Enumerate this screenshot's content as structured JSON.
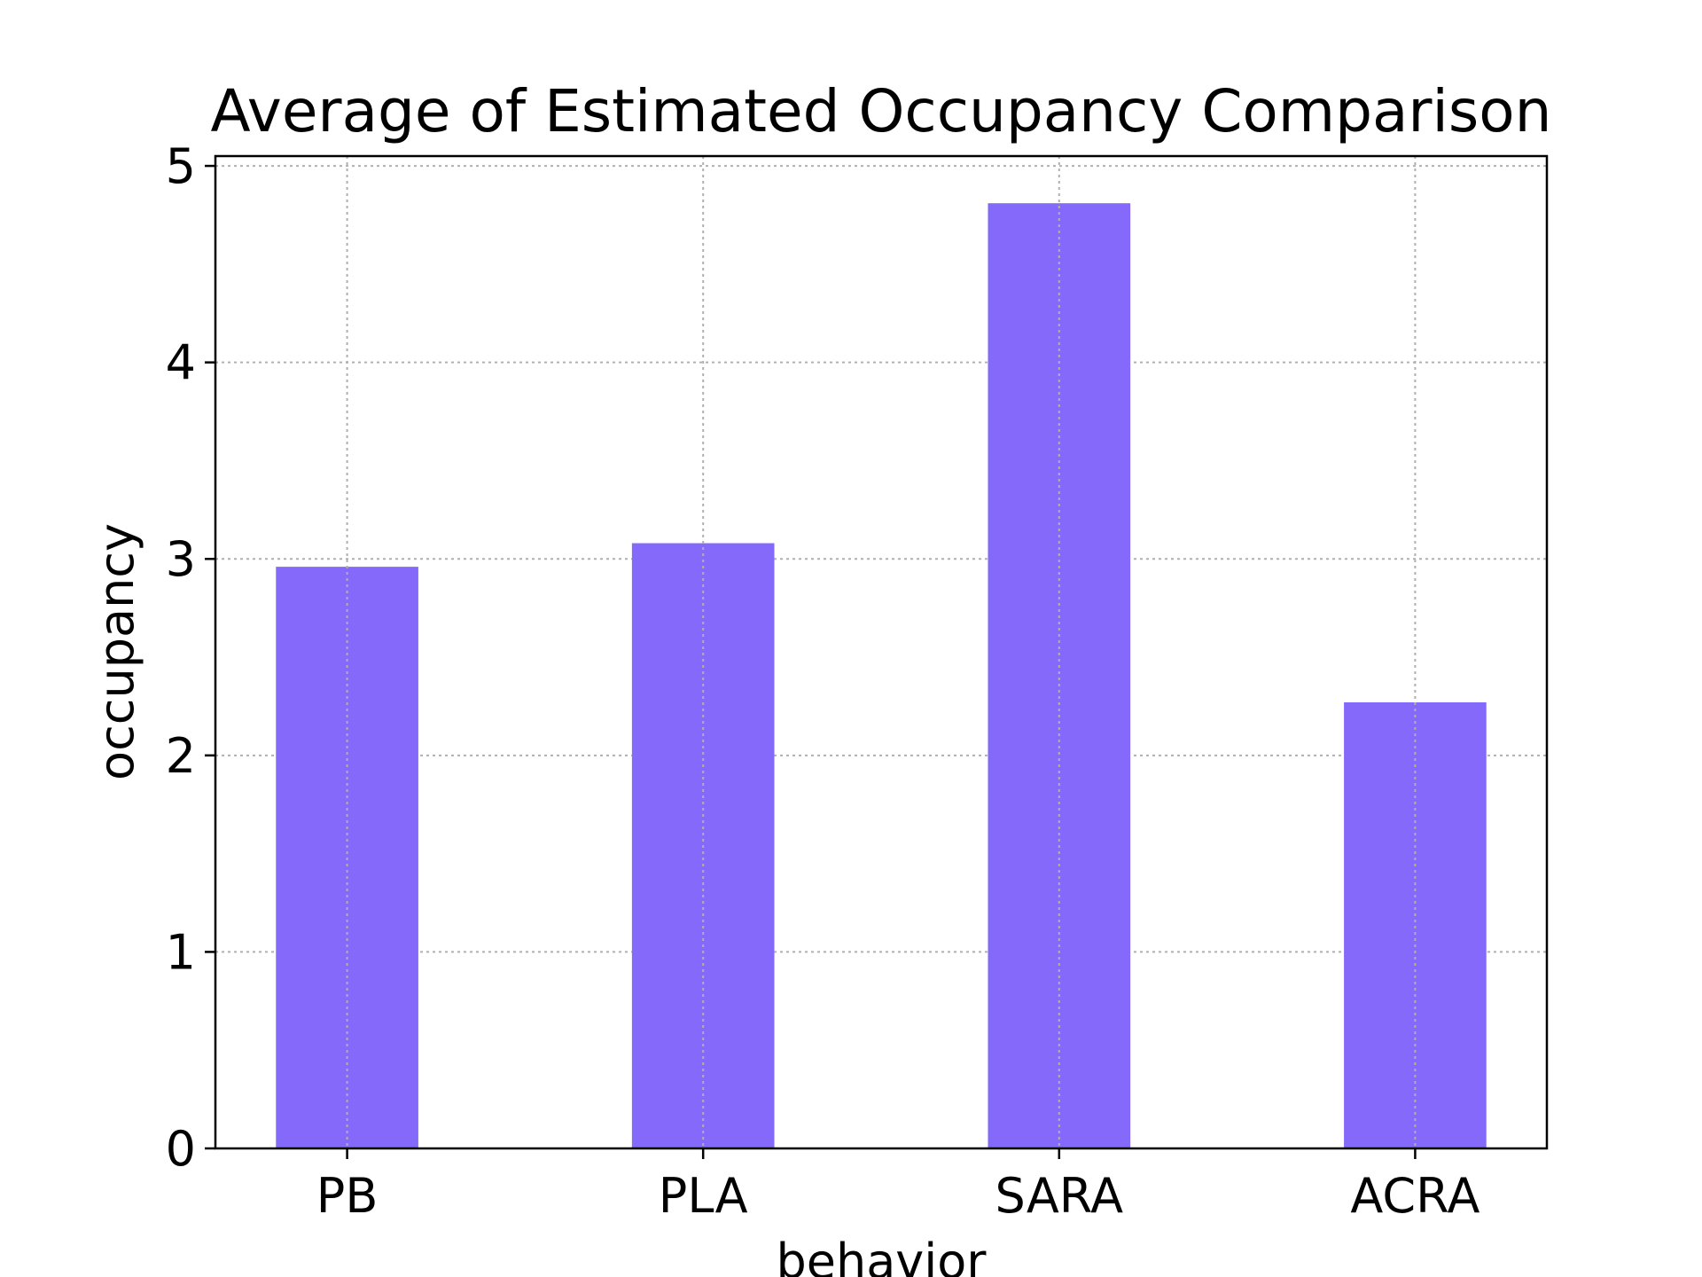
{
  "chart_data": {
    "type": "bar",
    "title": "Average of Estimated Occupancy Comparison",
    "xlabel": "behavior",
    "ylabel": "occupancy",
    "categories": [
      "PB",
      "PLA",
      "SARA",
      "ACRA"
    ],
    "values": [
      2.96,
      3.08,
      4.81,
      2.27
    ],
    "ylim": [
      0,
      5.05
    ],
    "yticks": [
      "0",
      "1",
      "2",
      "3",
      "4",
      "5"
    ],
    "grid": true,
    "bar_color": "#8569fb",
    "grid_color": "#b0b0b0"
  }
}
